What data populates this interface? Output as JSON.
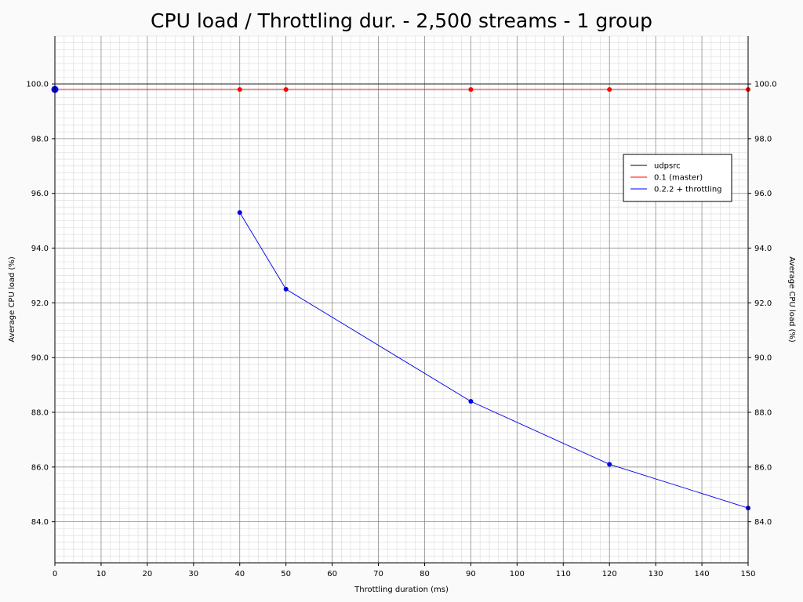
{
  "chart_data": {
    "type": "line",
    "title": "CPU load / Throttling dur. - 2,500 streams - 1 group",
    "xlabel": "Throttling duration (ms)",
    "ylabel": "Average CPU load (%)",
    "ylabel_right": "Average CPU load (%)",
    "xlim": [
      0,
      150
    ],
    "ylim": [
      82.5,
      101.75
    ],
    "x_ticks": [
      0,
      10,
      20,
      30,
      40,
      50,
      60,
      70,
      80,
      90,
      100,
      110,
      120,
      130,
      140,
      150
    ],
    "x_tick_labels": [
      "0",
      "10",
      "20",
      "30",
      "40",
      "50",
      "60",
      "70",
      "80",
      "90",
      "100",
      "110",
      "120",
      "130",
      "140",
      "150"
    ],
    "y_ticks": [
      84,
      86,
      88,
      90,
      92,
      94,
      96,
      98,
      100
    ],
    "y_tick_labels": [
      "84.0",
      "86.0",
      "88.0",
      "90.0",
      "92.0",
      "94.0",
      "96.0",
      "98.0",
      "100.0"
    ],
    "grid": true,
    "legend_position": "upper-right",
    "series": [
      {
        "name": "udpsrc",
        "color": "#000000",
        "markers": false,
        "x": [
          0,
          150
        ],
        "y": [
          100.0,
          100.0
        ]
      },
      {
        "name": "0.1 (master)",
        "color": "#ff0000",
        "markers": true,
        "x": [
          0,
          40,
          50,
          90,
          120,
          150
        ],
        "y": [
          99.8,
          99.8,
          99.8,
          99.8,
          99.8,
          99.8
        ]
      },
      {
        "name": "0.2.2 + throttling",
        "color": "#0000ee",
        "markers": true,
        "x": [
          0,
          40,
          50,
          90,
          120,
          150
        ],
        "y": [
          99.8,
          95.3,
          92.5,
          88.4,
          86.1,
          84.5
        ],
        "skip_segment_after_first": true
      }
    ]
  }
}
